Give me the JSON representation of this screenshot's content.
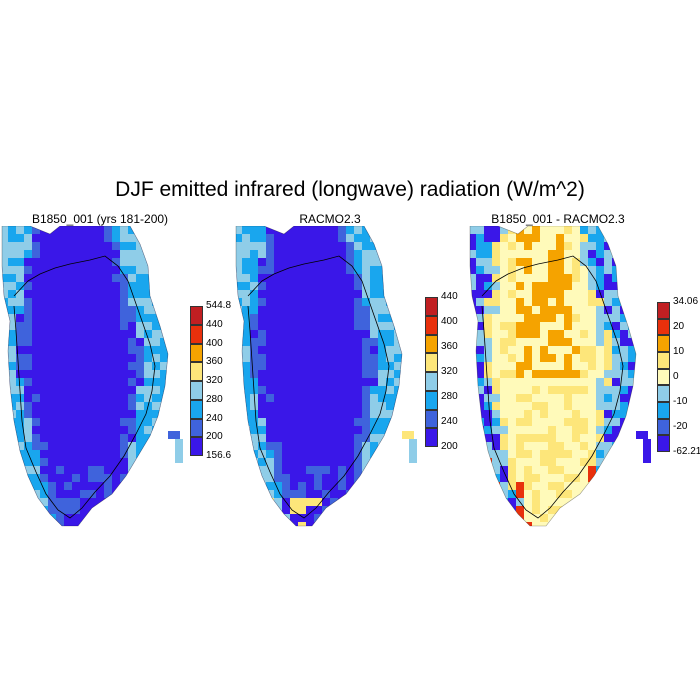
{
  "title": "DJF emitted infrared (longwave) radiation (W/m^2)",
  "panels": [
    {
      "title": "B1850_001 (yrs 181-200)",
      "colorbar": {
        "colors": [
          "#3a17e8",
          "#3f63dc",
          "#19a6ee",
          "#8fcde8",
          "#fde67a",
          "#f5a300",
          "#e8300c",
          "#c11f22"
        ],
        "labels": [
          "544.8",
          "440",
          "400",
          "360",
          "320",
          "280",
          "240",
          "200",
          "156.6"
        ]
      }
    },
    {
      "title": "RACMO2.3",
      "colorbar": {
        "colors": [
          "#3a17e8",
          "#3f63dc",
          "#19a6ee",
          "#8fcde8",
          "#fde67a",
          "#f5a300",
          "#e8300c",
          "#c11f22"
        ],
        "labels": [
          "440",
          "400",
          "360",
          "320",
          "280",
          "240",
          "200"
        ]
      }
    },
    {
      "title": "B1850_001 - RACMO2.3",
      "colorbar": {
        "colors": [
          "#3a17e8",
          "#3f63dc",
          "#19a6ee",
          "#8fcde8",
          "#fffaba",
          "#fde67a",
          "#f5a300",
          "#e8300c",
          "#c11f22"
        ],
        "labels": [
          "34.06",
          "20",
          "10",
          "0",
          "-10",
          "-20",
          "-62.21"
        ]
      }
    }
  ]
}
